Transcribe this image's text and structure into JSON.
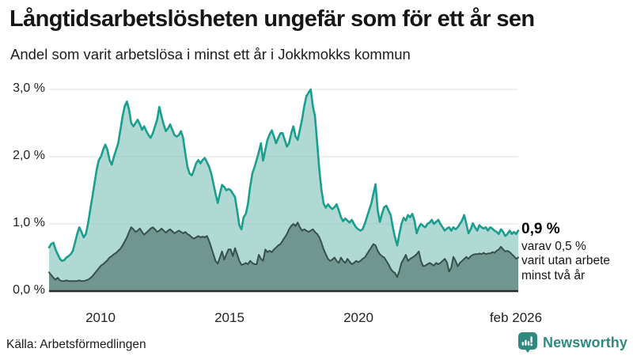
{
  "header": {
    "title": "Långtidsarbetslösheten ungefär som för ett år sen",
    "subtitle": "Andel som varit arbetslösa i minst ett år i Jokkmokks kommun"
  },
  "footer": {
    "source": "Källa: Arbetsförmedlingen",
    "brand": "Newsworthy",
    "brand_color": "#2e8a7e"
  },
  "chart_data": {
    "type": "area",
    "title": "Andel som varit arbetslösa i minst ett år i Jokkmokks kommun",
    "unit": "%",
    "frequency": "monthly",
    "x_start": "jan 2008",
    "x_end": "feb 2026",
    "ylim": [
      0,
      3.1
    ],
    "grid": true,
    "legend_position": "annotation-at-line-end",
    "ytick_values": [
      0,
      1,
      2,
      3
    ],
    "ytick_labels": [
      "0,0 %",
      "1,0 %",
      "2,0 %",
      "3,0 %"
    ],
    "xtick_labels": [
      "2010",
      "2015",
      "2020",
      "feb 2026"
    ],
    "annotation": {
      "value": "0,9 %",
      "line1": "varav 0,5 %",
      "line2": "varit utan arbete",
      "line3": "minst två år"
    },
    "colors": {
      "line_1yr": "#1a9e8e",
      "fill_1yr": "rgba(134,196,188,0.65)",
      "line_2yr": "#36504b",
      "fill_2yr": "rgba(47,79,74,0.49)",
      "gridline": "#dcdfe2",
      "baseline": "#2b2b2b"
    },
    "series": [
      {
        "name": "Arbetslösa minst ett år",
        "last_value": 0.9,
        "line_color": "#1a9e8e",
        "fill_color": "rgba(134,196,188,0.65)",
        "stroke_width": 2.6,
        "values": [
          0.65,
          0.7,
          0.72,
          0.62,
          0.55,
          0.48,
          0.45,
          0.46,
          0.5,
          0.52,
          0.55,
          0.6,
          0.72,
          0.85,
          0.95,
          0.88,
          0.8,
          0.85,
          1.0,
          1.2,
          1.4,
          1.6,
          1.8,
          1.95,
          2.0,
          2.1,
          2.18,
          2.1,
          1.95,
          1.88,
          2.0,
          2.1,
          2.2,
          2.4,
          2.6,
          2.75,
          2.82,
          2.7,
          2.5,
          2.45,
          2.5,
          2.55,
          2.48,
          2.4,
          2.45,
          2.38,
          2.32,
          2.28,
          2.35,
          2.45,
          2.55,
          2.74,
          2.6,
          2.48,
          2.38,
          2.42,
          2.48,
          2.4,
          2.32,
          2.3,
          2.32,
          2.38,
          2.28,
          2.05,
          1.85,
          1.75,
          1.72,
          1.8,
          1.9,
          1.95,
          1.9,
          1.95,
          1.98,
          1.92,
          1.85,
          1.75,
          1.6,
          1.45,
          1.31,
          1.45,
          1.58,
          1.55,
          1.5,
          1.52,
          1.5,
          1.45,
          1.4,
          1.2,
          0.98,
          0.92,
          1.1,
          1.15,
          1.3,
          1.55,
          1.75,
          1.84,
          1.95,
          2.07,
          2.2,
          1.94,
          2.1,
          2.25,
          2.33,
          2.39,
          2.3,
          2.2,
          2.28,
          2.35,
          2.35,
          2.25,
          2.15,
          2.2,
          2.35,
          2.45,
          2.3,
          2.25,
          2.4,
          2.55,
          2.75,
          2.9,
          2.95,
          3.0,
          2.75,
          2.6,
          2.2,
          1.8,
          1.5,
          1.3,
          1.24,
          1.29,
          1.25,
          1.22,
          1.25,
          1.29,
          1.2,
          1.1,
          1.04,
          1.08,
          1.05,
          1.02,
          1.06,
          1.0,
          0.95,
          0.92,
          0.9,
          0.92,
          1.0,
          1.1,
          1.2,
          1.3,
          1.45,
          1.59,
          1.2,
          1.03,
          1.15,
          1.25,
          1.27,
          1.2,
          1.13,
          0.95,
          0.8,
          0.68,
          0.85,
          1.0,
          1.09,
          1.05,
          1.13,
          1.1,
          1.15,
          1.05,
          0.86,
          0.95,
          1.0,
          0.97,
          0.95,
          1.0,
          1.02,
          1.06,
          1.0,
          1.03,
          1.06,
          1.0,
          0.95,
          0.9,
          0.93,
          0.95,
          0.9,
          0.95,
          0.92,
          0.95,
          1.0,
          1.05,
          1.13,
          1.0,
          0.86,
          0.92,
          1.01,
          0.95,
          0.9,
          0.98,
          0.95,
          0.93,
          0.95,
          0.9,
          0.95,
          0.93,
          0.9,
          0.88,
          0.85,
          0.92,
          0.88,
          0.82,
          0.85,
          0.9,
          0.85,
          0.88,
          0.85,
          0.9
        ]
      },
      {
        "name": "Arbetslösa minst två år",
        "last_value": 0.5,
        "line_color": "#36504b",
        "fill_color": "rgba(47,79,74,0.49)",
        "stroke_width": 2,
        "values": [
          0.28,
          0.24,
          0.2,
          0.17,
          0.2,
          0.16,
          0.15,
          0.15,
          0.16,
          0.15,
          0.15,
          0.15,
          0.15,
          0.15,
          0.16,
          0.15,
          0.15,
          0.16,
          0.17,
          0.19,
          0.22,
          0.26,
          0.3,
          0.34,
          0.38,
          0.4,
          0.43,
          0.46,
          0.5,
          0.52,
          0.55,
          0.57,
          0.6,
          0.63,
          0.68,
          0.74,
          0.8,
          0.88,
          0.95,
          0.92,
          0.88,
          0.9,
          0.93,
          0.88,
          0.84,
          0.87,
          0.9,
          0.93,
          0.95,
          0.92,
          0.88,
          0.9,
          0.93,
          0.9,
          0.87,
          0.9,
          0.92,
          0.89,
          0.86,
          0.88,
          0.9,
          0.88,
          0.86,
          0.88,
          0.85,
          0.83,
          0.8,
          0.78,
          0.8,
          0.82,
          0.8,
          0.81,
          0.8,
          0.82,
          0.75,
          0.65,
          0.55,
          0.45,
          0.41,
          0.5,
          0.59,
          0.47,
          0.55,
          0.62,
          0.62,
          0.52,
          0.64,
          0.55,
          0.45,
          0.39,
          0.4,
          0.42,
          0.4,
          0.45,
          0.42,
          0.4,
          0.4,
          0.54,
          0.48,
          0.45,
          0.62,
          0.58,
          0.6,
          0.58,
          0.62,
          0.65,
          0.68,
          0.7,
          0.75,
          0.8,
          0.85,
          0.92,
          0.97,
          1.0,
          0.97,
          1.02,
          0.95,
          0.9,
          0.92,
          0.9,
          0.88,
          0.9,
          0.92,
          0.88,
          0.85,
          0.8,
          0.72,
          0.62,
          0.55,
          0.48,
          0.45,
          0.47,
          0.5,
          0.45,
          0.42,
          0.5,
          0.45,
          0.42,
          0.48,
          0.44,
          0.4,
          0.42,
          0.45,
          0.43,
          0.45,
          0.48,
          0.5,
          0.55,
          0.6,
          0.65,
          0.7,
          0.68,
          0.6,
          0.55,
          0.52,
          0.5,
          0.45,
          0.4,
          0.33,
          0.29,
          0.27,
          0.21,
          0.3,
          0.42,
          0.48,
          0.54,
          0.45,
          0.48,
          0.5,
          0.52,
          0.55,
          0.59,
          0.45,
          0.37,
          0.38,
          0.4,
          0.42,
          0.4,
          0.38,
          0.42,
          0.4,
          0.42,
          0.45,
          0.48,
          0.43,
          0.29,
          0.35,
          0.51,
          0.45,
          0.37,
          0.42,
          0.45,
          0.48,
          0.51,
          0.48,
          0.52,
          0.54,
          0.55,
          0.55,
          0.56,
          0.55,
          0.57,
          0.55,
          0.56,
          0.56,
          0.58,
          0.57,
          0.6,
          0.62,
          0.66,
          0.62,
          0.59,
          0.6,
          0.58,
          0.55,
          0.52,
          0.48,
          0.5
        ]
      }
    ]
  }
}
